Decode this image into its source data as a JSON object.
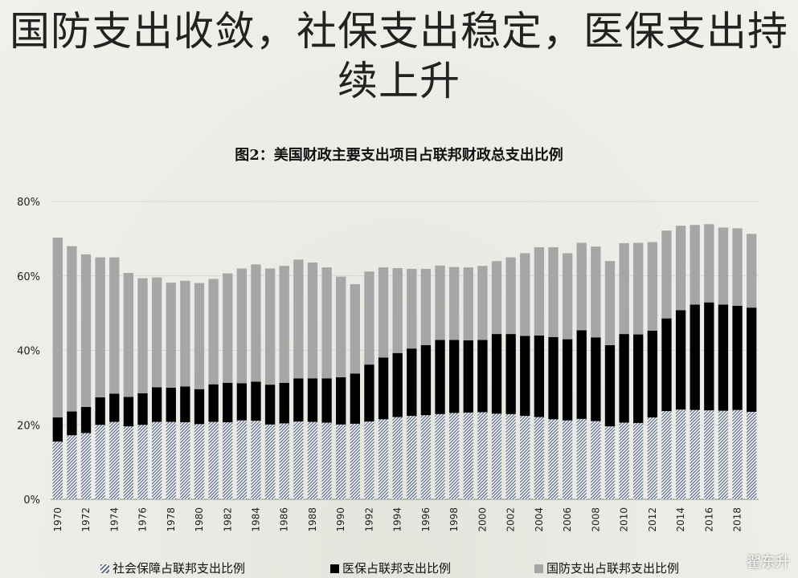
{
  "slide": {
    "title": "国防支出收敛，社保支出稳定，医保支出持续上升"
  },
  "chart_data": {
    "type": "bar",
    "stacked": true,
    "title": "图2：美国财政主要支出项目占联邦财政总支出比例",
    "y_tick_labels": [
      "0%",
      "20%",
      "40%",
      "60%",
      "80%"
    ],
    "ylim": [
      0,
      80
    ],
    "x_tick_labels": [
      "1970",
      "1972",
      "1974",
      "1976",
      "1978",
      "1980",
      "1982",
      "1984",
      "1986",
      "1988",
      "1990",
      "1992",
      "1994",
      "1996",
      "1998",
      "2000",
      "2002",
      "2004",
      "2006",
      "2008",
      "2010",
      "2012",
      "2014",
      "2016",
      "2018"
    ],
    "categories": [
      "1970",
      "1971",
      "1972",
      "1973",
      "1974",
      "1975",
      "1976",
      "1977",
      "1978",
      "1979",
      "1980",
      "1981",
      "1982",
      "1983",
      "1984",
      "1985",
      "1986",
      "1987",
      "1988",
      "1989",
      "1990",
      "1991",
      "1992",
      "1993",
      "1994",
      "1995",
      "1996",
      "1997",
      "1998",
      "1999",
      "2000",
      "2001",
      "2002",
      "2003",
      "2004",
      "2005",
      "2006",
      "2007",
      "2008",
      "2009",
      "2010",
      "2011",
      "2012",
      "2013",
      "2014",
      "2015",
      "2016",
      "2017",
      "2018",
      "2019"
    ],
    "series": [
      {
        "name": "社会保障占联邦支出比例",
        "color": "#5a6a86",
        "pattern": "diagonal-hatch",
        "values": [
          15.5,
          17.2,
          17.8,
          20.0,
          20.8,
          19.6,
          20.0,
          20.8,
          20.8,
          20.7,
          20.2,
          20.8,
          20.7,
          21.2,
          21.1,
          20.1,
          20.4,
          20.9,
          20.8,
          20.6,
          20.1,
          20.3,
          20.9,
          21.5,
          22.1,
          22.4,
          22.6,
          22.9,
          23.2,
          23.3,
          23.4,
          23.0,
          22.9,
          22.4,
          22.1,
          21.5,
          21.2,
          21.6,
          21.0,
          19.6,
          20.6,
          20.5,
          22.0,
          23.7,
          24.1,
          24.0,
          23.9,
          23.8,
          24.0,
          23.5
        ]
      },
      {
        "name": "医保占联邦支出比例",
        "color": "#000000",
        "values": [
          6.5,
          6.4,
          7.0,
          7.4,
          7.6,
          7.9,
          8.5,
          9.3,
          9.2,
          9.6,
          9.4,
          10.1,
          10.6,
          10.0,
          10.5,
          10.7,
          10.9,
          11.6,
          11.7,
          11.9,
          12.7,
          13.5,
          15.3,
          16.6,
          17.2,
          18.1,
          18.8,
          19.9,
          19.6,
          19.4,
          19.4,
          21.4,
          21.5,
          21.5,
          21.9,
          22.1,
          21.8,
          23.8,
          22.5,
          21.8,
          23.8,
          23.8,
          23.3,
          24.9,
          26.7,
          28.3,
          29.0,
          28.5,
          28.0,
          28.0
        ]
      },
      {
        "name": "国防支出占联邦支出比例",
        "color": "#a6a6a6",
        "values": [
          48.3,
          44.4,
          41.0,
          37.6,
          36.6,
          33.3,
          30.9,
          29.5,
          28.2,
          28.4,
          28.5,
          28.3,
          29.4,
          30.8,
          31.5,
          31.2,
          31.4,
          31.9,
          31.1,
          29.8,
          27.0,
          24.0,
          25.0,
          24.2,
          22.8,
          21.4,
          20.5,
          20.0,
          19.6,
          19.6,
          19.9,
          19.6,
          20.6,
          22.2,
          23.7,
          24.1,
          23.1,
          23.5,
          24.4,
          22.6,
          24.4,
          24.6,
          23.8,
          23.6,
          22.7,
          21.4,
          21.0,
          20.7,
          20.8,
          19.8
        ]
      }
    ],
    "legend_position": "bottom",
    "grid": true
  },
  "watermark": "翟东升"
}
